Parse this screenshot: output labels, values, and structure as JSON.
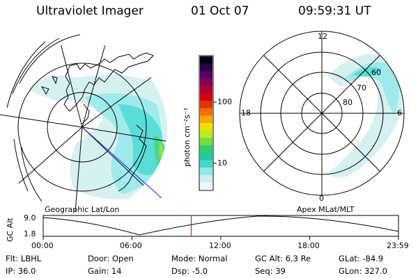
{
  "header": {
    "instrument": "Ultraviolet Imager",
    "date": "01 Oct 07",
    "time": "09:59:31 UT"
  },
  "colorbar": {
    "unit_label": "photon cm⁻²s⁻¹",
    "tick_labels": [
      "100",
      "10"
    ],
    "colors": [
      "#000018",
      "#2a0040",
      "#55006a",
      "#850050",
      "#b00028",
      "#d00010",
      "#e83000",
      "#f07000",
      "#f8a800",
      "#f0e000",
      "#b8ee20",
      "#70e040",
      "#30d070",
      "#20c8a0",
      "#40d8d0",
      "#90e8e8",
      "#cfeff0",
      "#eef6f6"
    ]
  },
  "panels": {
    "geo_title": "Geographic Lat/Lon",
    "apex_title": "Apex MLat/MLT",
    "apex_lat_labels": [
      "60",
      "70",
      "80"
    ],
    "apex_mlt_labels": {
      "top": "12",
      "left": "18",
      "right": "6",
      "bottom": "0"
    }
  },
  "timeline": {
    "axis_label": "GC Alt",
    "y_ticks": [
      "9.0",
      "1.8"
    ],
    "x_ticks": [
      "00:00",
      "06:00",
      "12:00",
      "18:00",
      "23:59"
    ],
    "current_time_fraction": 0.4166,
    "marker_color": "#dd0000"
  },
  "status": [
    {
      "key": "Flt:",
      "value": "LBHL"
    },
    {
      "key": "Door:",
      "value": "Open"
    },
    {
      "key": "Mode:",
      "value": "Normal"
    },
    {
      "key": "GC Alt:",
      "value": "6.3 Re"
    },
    {
      "key": "GLat:",
      "value": "-84.9"
    },
    {
      "key": "IP:",
      "value": "36.0"
    },
    {
      "key": "Gain:",
      "value": "14"
    },
    {
      "key": "Dsp:",
      "value": "-5.0"
    },
    {
      "key": "Seq:",
      "value": "39"
    },
    {
      "key": "GLon:",
      "value": "327.0"
    }
  ]
}
